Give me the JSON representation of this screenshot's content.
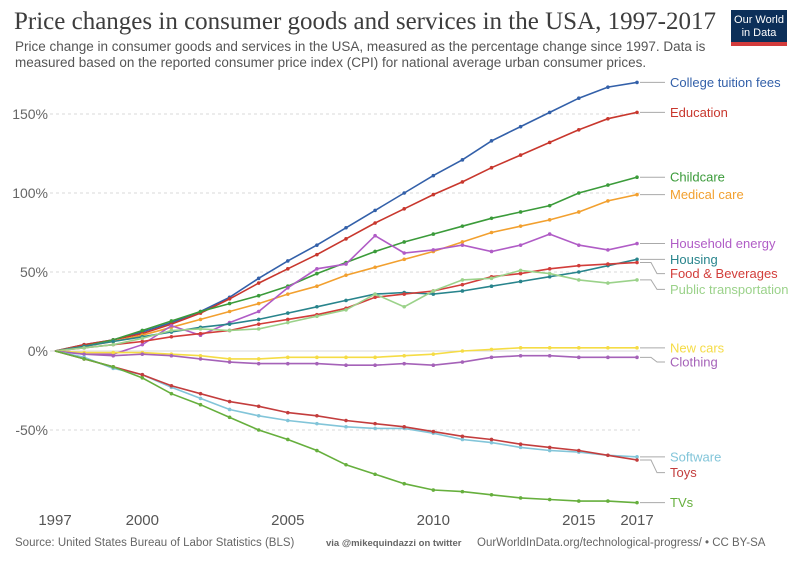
{
  "header": {
    "title": "Price changes in consumer goods and services in the USA, 1997-2017",
    "subtitle": "Price change in consumer goods and services in the USA, measured as the percentage change since 1997. Data is measured based on the reported consumer price index (CPI) for national average urban consumer prices.",
    "logo_line1": "Our World",
    "logo_line2": "in Data"
  },
  "footer": {
    "source": "Source: United States Bureau of Labor Statistics (BLS)",
    "credit": "via @mikequindazzi on twitter",
    "url": "OurWorldInData.org/technological-progress/ • CC BY-SA"
  },
  "chart_data": {
    "type": "line",
    "title": "Price changes in consumer goods and services in the USA, 1997-2017",
    "xlabel": "",
    "ylabel": "",
    "xlim": [
      1997,
      2017
    ],
    "ylim": [
      -100,
      175
    ],
    "x_ticks": [
      1997,
      2000,
      2005,
      2010,
      2015,
      2017
    ],
    "y_ticks": [
      -50,
      0,
      50,
      100,
      150
    ],
    "y_tick_labels": [
      "-50%",
      "0%",
      "50%",
      "100%",
      "150%"
    ],
    "grid": "horizontal-dashed",
    "legend": "right-inline-labels",
    "x": [
      1997,
      1998,
      1999,
      2000,
      2001,
      2002,
      2003,
      2004,
      2005,
      2006,
      2007,
      2008,
      2009,
      2010,
      2011,
      2012,
      2013,
      2014,
      2015,
      2016,
      2017
    ],
    "series": [
      {
        "name": "College tuition fees",
        "color": "#3360a9",
        "values": [
          0,
          4,
          7,
          12,
          18,
          25,
          34,
          46,
          57,
          67,
          78,
          89,
          100,
          111,
          121,
          133,
          142,
          151,
          160,
          167,
          170
        ]
      },
      {
        "name": "Education",
        "color": "#c8372d",
        "values": [
          0,
          4,
          7,
          11,
          17,
          24,
          33,
          43,
          52,
          61,
          71,
          81,
          90,
          99,
          107,
          116,
          124,
          132,
          140,
          147,
          151
        ]
      },
      {
        "name": "Childcare",
        "color": "#3b9b3a",
        "values": [
          0,
          3,
          7,
          13,
          19,
          25,
          30,
          35,
          41,
          49,
          56,
          63,
          69,
          74,
          79,
          84,
          88,
          92,
          100,
          105,
          110
        ]
      },
      {
        "name": "Medical care",
        "color": "#f2a02f",
        "values": [
          0,
          3,
          6,
          10,
          15,
          20,
          25,
          30,
          36,
          41,
          48,
          53,
          58,
          63,
          69,
          75,
          79,
          83,
          88,
          95,
          99
        ]
      },
      {
        "name": "Household energy",
        "color": "#b05cc6",
        "values": [
          0,
          -2,
          -2,
          4,
          16,
          10,
          18,
          25,
          40,
          52,
          55,
          73,
          62,
          64,
          67,
          63,
          67,
          74,
          67,
          64,
          68
        ]
      },
      {
        "name": "Housing",
        "color": "#28848c",
        "values": [
          0,
          3,
          6,
          9,
          12,
          15,
          17,
          20,
          24,
          28,
          32,
          36,
          37,
          36,
          38,
          41,
          44,
          47,
          50,
          54,
          58
        ]
      },
      {
        "name": "Food & Beverages",
        "color": "#d23d3a",
        "values": [
          0,
          2,
          4,
          6,
          9,
          11,
          13,
          17,
          20,
          23,
          27,
          34,
          36,
          38,
          42,
          47,
          49,
          52,
          54,
          55,
          56
        ]
      },
      {
        "name": "Public transportation",
        "color": "#9bd28a",
        "values": [
          0,
          2,
          4,
          8,
          13,
          14,
          13,
          14,
          18,
          22,
          26,
          36,
          28,
          38,
          45,
          46,
          51,
          49,
          45,
          43,
          45
        ]
      },
      {
        "name": "New cars",
        "color": "#f5dc45",
        "values": [
          0,
          -1,
          -1,
          -1,
          -2,
          -3,
          -5,
          -5,
          -4,
          -4,
          -4,
          -4,
          -3,
          -2,
          0,
          1,
          2,
          2,
          2,
          2,
          2
        ]
      },
      {
        "name": "Clothing",
        "color": "#a562b8",
        "values": [
          0,
          -2,
          -3,
          -2,
          -3,
          -5,
          -7,
          -8,
          -8,
          -8,
          -9,
          -9,
          -8,
          -9,
          -7,
          -4,
          -3,
          -3,
          -4,
          -4,
          -4
        ]
      },
      {
        "name": "Software",
        "color": "#82c5d9",
        "values": [
          0,
          -4,
          -11,
          -15,
          -23,
          -30,
          -37,
          -41,
          -44,
          -46,
          -48,
          -49,
          -49,
          -52,
          -56,
          -58,
          -61,
          -63,
          -64,
          -66,
          -67
        ]
      },
      {
        "name": "Toys",
        "color": "#c33d3d",
        "values": [
          0,
          -5,
          -10,
          -15,
          -22,
          -27,
          -32,
          -35,
          -39,
          -41,
          -44,
          -46,
          -48,
          -51,
          -54,
          -56,
          -59,
          -61,
          -63,
          -66,
          -69
        ]
      },
      {
        "name": "TVs",
        "color": "#66af3d",
        "values": [
          0,
          -5,
          -10,
          -17,
          -27,
          -34,
          -42,
          -50,
          -56,
          -63,
          -72,
          -78,
          -84,
          -88,
          -89,
          -91,
          -93,
          -94,
          -95,
          -95,
          -96
        ]
      }
    ],
    "label_order": [
      {
        "name": "College tuition fees",
        "label_value": 170
      },
      {
        "name": "Education",
        "label_value": 151
      },
      {
        "name": "Childcare",
        "label_value": 110
      },
      {
        "name": "Medical care",
        "label_value": 99
      },
      {
        "name": "Household energy",
        "label_value": 68
      },
      {
        "name": "Housing",
        "label_value": 58
      },
      {
        "name": "Food & Beverages",
        "label_value": 49
      },
      {
        "name": "Public transportation",
        "label_value": 39
      },
      {
        "name": "New cars",
        "label_value": 2
      },
      {
        "name": "Clothing",
        "label_value": -7
      },
      {
        "name": "Software",
        "label_value": -67
      },
      {
        "name": "Toys",
        "label_value": -77
      },
      {
        "name": "TVs",
        "label_value": -96
      }
    ]
  }
}
